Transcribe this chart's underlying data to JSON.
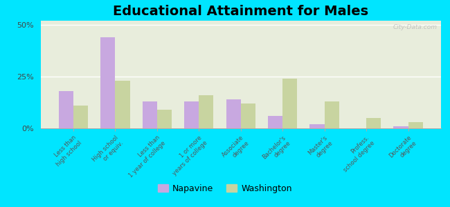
{
  "title": "Educational Attainment for Males",
  "categories": [
    "Less than\nhigh school",
    "High school\nor equiv.",
    "Less than\n1 year of college",
    "1 or more\nyears of college",
    "Associate\ndegree",
    "Bachelor's\ndegree",
    "Master's\ndegree",
    "Profess.\nschool degree",
    "Doctorate\ndegree"
  ],
  "napavine": [
    18,
    44,
    13,
    13,
    14,
    6,
    2,
    0,
    1
  ],
  "washington": [
    11,
    23,
    9,
    16,
    12,
    24,
    13,
    5,
    3
  ],
  "napavine_color": "#c8a8e0",
  "washington_color": "#c8d4a0",
  "background_outer": "#00e5ff",
  "background_inner_top": "#e8eddc",
  "title_fontsize": 14,
  "legend_labels": [
    "Napavine",
    "Washington"
  ],
  "yticks": [
    0,
    25,
    50
  ],
  "ylim": [
    0,
    52
  ],
  "watermark": "City-Data.com"
}
